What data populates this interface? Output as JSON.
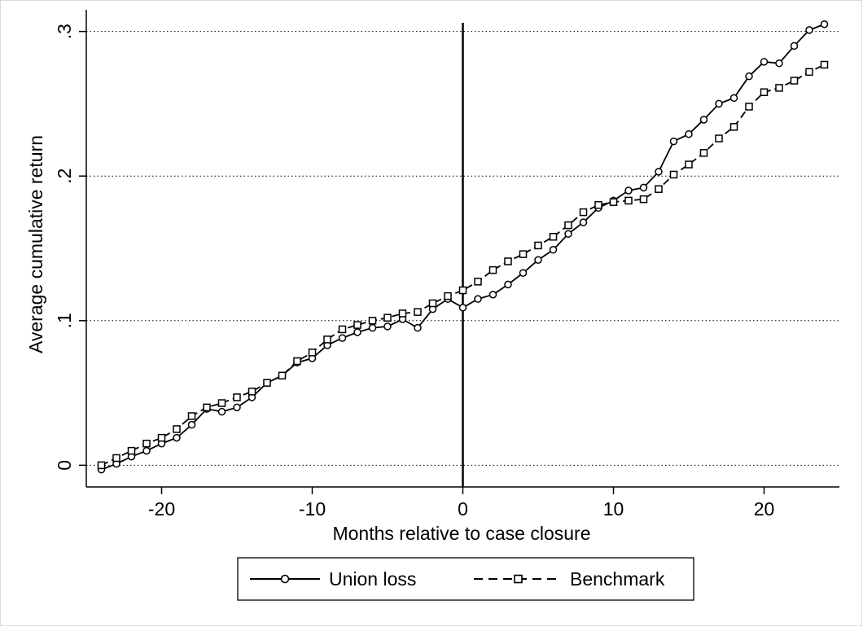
{
  "chart_data": {
    "type": "line",
    "xlabel": "Months relative to case closure",
    "ylabel": "Average cumulative return",
    "xlim": [
      -25,
      25
    ],
    "ylim": [
      -0.015,
      0.315
    ],
    "x_ticks": [
      -20,
      -10,
      0,
      10,
      20
    ],
    "x_tick_labels": [
      "-20",
      "-10",
      "0",
      "10",
      "20"
    ],
    "y_ticks": [
      0,
      0.1,
      0.2,
      0.3
    ],
    "y_tick_labels": [
      "0",
      ".1",
      ".2",
      ".3"
    ],
    "grid": "horizontal dotted at y ticks",
    "reference_line_x": 0,
    "legend_position": "bottom",
    "x": [
      -24,
      -23,
      -22,
      -21,
      -20,
      -19,
      -18,
      -17,
      -16,
      -15,
      -14,
      -13,
      -12,
      -11,
      -10,
      -9,
      -8,
      -7,
      -6,
      -5,
      -4,
      -3,
      -2,
      -1,
      0,
      1,
      2,
      3,
      4,
      5,
      6,
      7,
      8,
      9,
      10,
      11,
      12,
      13,
      14,
      15,
      16,
      17,
      18,
      19,
      20,
      21,
      22,
      23,
      24
    ],
    "series": [
      {
        "name": "Union loss",
        "line": "solid",
        "marker": "circle",
        "values": [
          -0.003,
          0.001,
          0.006,
          0.01,
          0.015,
          0.019,
          0.028,
          0.039,
          0.037,
          0.04,
          0.047,
          0.057,
          0.062,
          0.071,
          0.074,
          0.083,
          0.088,
          0.092,
          0.095,
          0.096,
          0.101,
          0.095,
          0.108,
          0.115,
          0.109,
          0.115,
          0.118,
          0.125,
          0.133,
          0.142,
          0.149,
          0.16,
          0.168,
          0.178,
          0.183,
          0.19,
          0.192,
          0.203,
          0.224,
          0.229,
          0.239,
          0.25,
          0.254,
          0.269,
          0.279,
          0.278,
          0.29,
          0.301,
          0.305
        ]
      },
      {
        "name": "Benchmark",
        "line": "dashed",
        "marker": "square",
        "values": [
          0.0,
          0.005,
          0.01,
          0.015,
          0.019,
          0.025,
          0.034,
          0.04,
          0.043,
          0.047,
          0.051,
          0.057,
          0.062,
          0.072,
          0.078,
          0.087,
          0.094,
          0.097,
          0.1,
          0.102,
          0.105,
          0.106,
          0.112,
          0.117,
          0.121,
          0.127,
          0.135,
          0.141,
          0.146,
          0.152,
          0.158,
          0.166,
          0.175,
          0.18,
          0.182,
          0.183,
          0.184,
          0.191,
          0.201,
          0.208,
          0.216,
          0.226,
          0.234,
          0.248,
          0.258,
          0.261,
          0.266,
          0.272,
          0.277
        ]
      }
    ]
  }
}
